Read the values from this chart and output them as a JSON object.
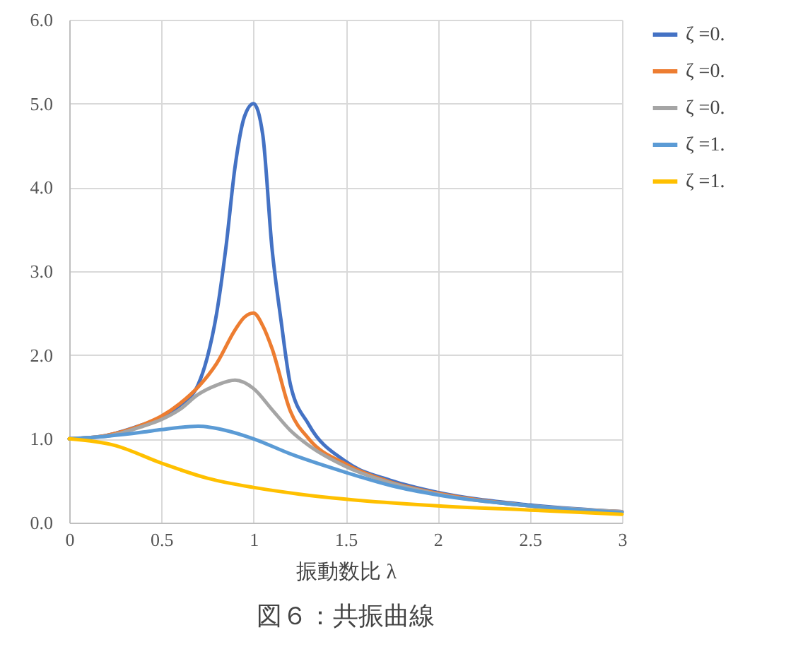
{
  "chart_data": {
    "type": "line",
    "title": "図６：共振曲線",
    "xlabel": "振動数比 λ",
    "xlim": [
      0,
      3
    ],
    "xticks": [
      0,
      0.5,
      1,
      1.5,
      2,
      2.5,
      3
    ],
    "ylim": [
      0,
      6
    ],
    "yticks": [
      {
        "value": 0,
        "label": "0.0"
      },
      {
        "value": 1,
        "label": "1.0"
      },
      {
        "value": 2,
        "label": "2.0"
      },
      {
        "value": 3,
        "label": "3.0"
      },
      {
        "value": 4,
        "label": "4.0"
      },
      {
        "value": 5,
        "label": "5.0"
      },
      {
        "value": 6,
        "label": "6.0"
      }
    ],
    "grid": true,
    "legend": "right",
    "marker": "none",
    "line_style": "solid",
    "series": [
      {
        "name": "ζ =0.",
        "color": "#4472c4",
        "x": [
          0,
          0.2,
          0.4,
          0.5,
          0.6,
          0.7,
          0.75,
          0.8,
          0.85,
          0.9,
          0.95,
          1,
          1.05,
          1.1,
          1.15,
          1.2,
          1.3,
          1.5,
          1.75,
          2,
          2.5,
          3
        ],
        "values": [
          1,
          1.04,
          1.17,
          1.25,
          1.4,
          1.65,
          1.98,
          2.5,
          3.28,
          4.25,
          4.84,
          5,
          4.63,
          3.28,
          2.4,
          1.65,
          1.17,
          0.73,
          0.5,
          0.36,
          0.21,
          0.13
        ]
      },
      {
        "name": "ζ =0.",
        "color": "#ed7d31",
        "x": [
          0,
          0.2,
          0.4,
          0.5,
          0.6,
          0.7,
          0.8,
          0.9,
          0.95,
          1,
          1.05,
          1.1,
          1.2,
          1.3,
          1.5,
          1.75,
          2,
          2.5,
          3
        ],
        "values": [
          1,
          1.04,
          1.17,
          1.27,
          1.42,
          1.62,
          1.9,
          2.3,
          2.45,
          2.5,
          2.35,
          2.08,
          1.33,
          1,
          0.7,
          0.48,
          0.35,
          0.2,
          0.13
        ]
      },
      {
        "name": "ζ =0.",
        "color": "#a5a5a5",
        "x": [
          0,
          0.2,
          0.4,
          0.5,
          0.6,
          0.7,
          0.8,
          0.9,
          1,
          1.1,
          1.2,
          1.3,
          1.5,
          1.75,
          2,
          2.5,
          3
        ],
        "values": [
          1,
          1.03,
          1.15,
          1.23,
          1.35,
          1.53,
          1.64,
          1.7,
          1.6,
          1.35,
          1.1,
          0.92,
          0.67,
          0.47,
          0.34,
          0.2,
          0.13
        ]
      },
      {
        "name": "ζ =1.",
        "color": "#5b9bd5",
        "x": [
          0,
          0.2,
          0.4,
          0.5,
          0.7,
          0.85,
          1,
          1.2,
          1.5,
          1.75,
          2,
          2.5,
          3
        ],
        "values": [
          1,
          1.03,
          1.08,
          1.11,
          1.15,
          1.1,
          1,
          0.82,
          0.6,
          0.44,
          0.33,
          0.2,
          0.12
        ]
      },
      {
        "name": "ζ =1.",
        "color": "#ffc000",
        "x": [
          0,
          0.25,
          0.5,
          0.75,
          1,
          1.25,
          1.5,
          2,
          2.5,
          3
        ],
        "values": [
          1,
          0.92,
          0.71,
          0.53,
          0.42,
          0.34,
          0.28,
          0.2,
          0.15,
          0.1
        ]
      }
    ]
  }
}
